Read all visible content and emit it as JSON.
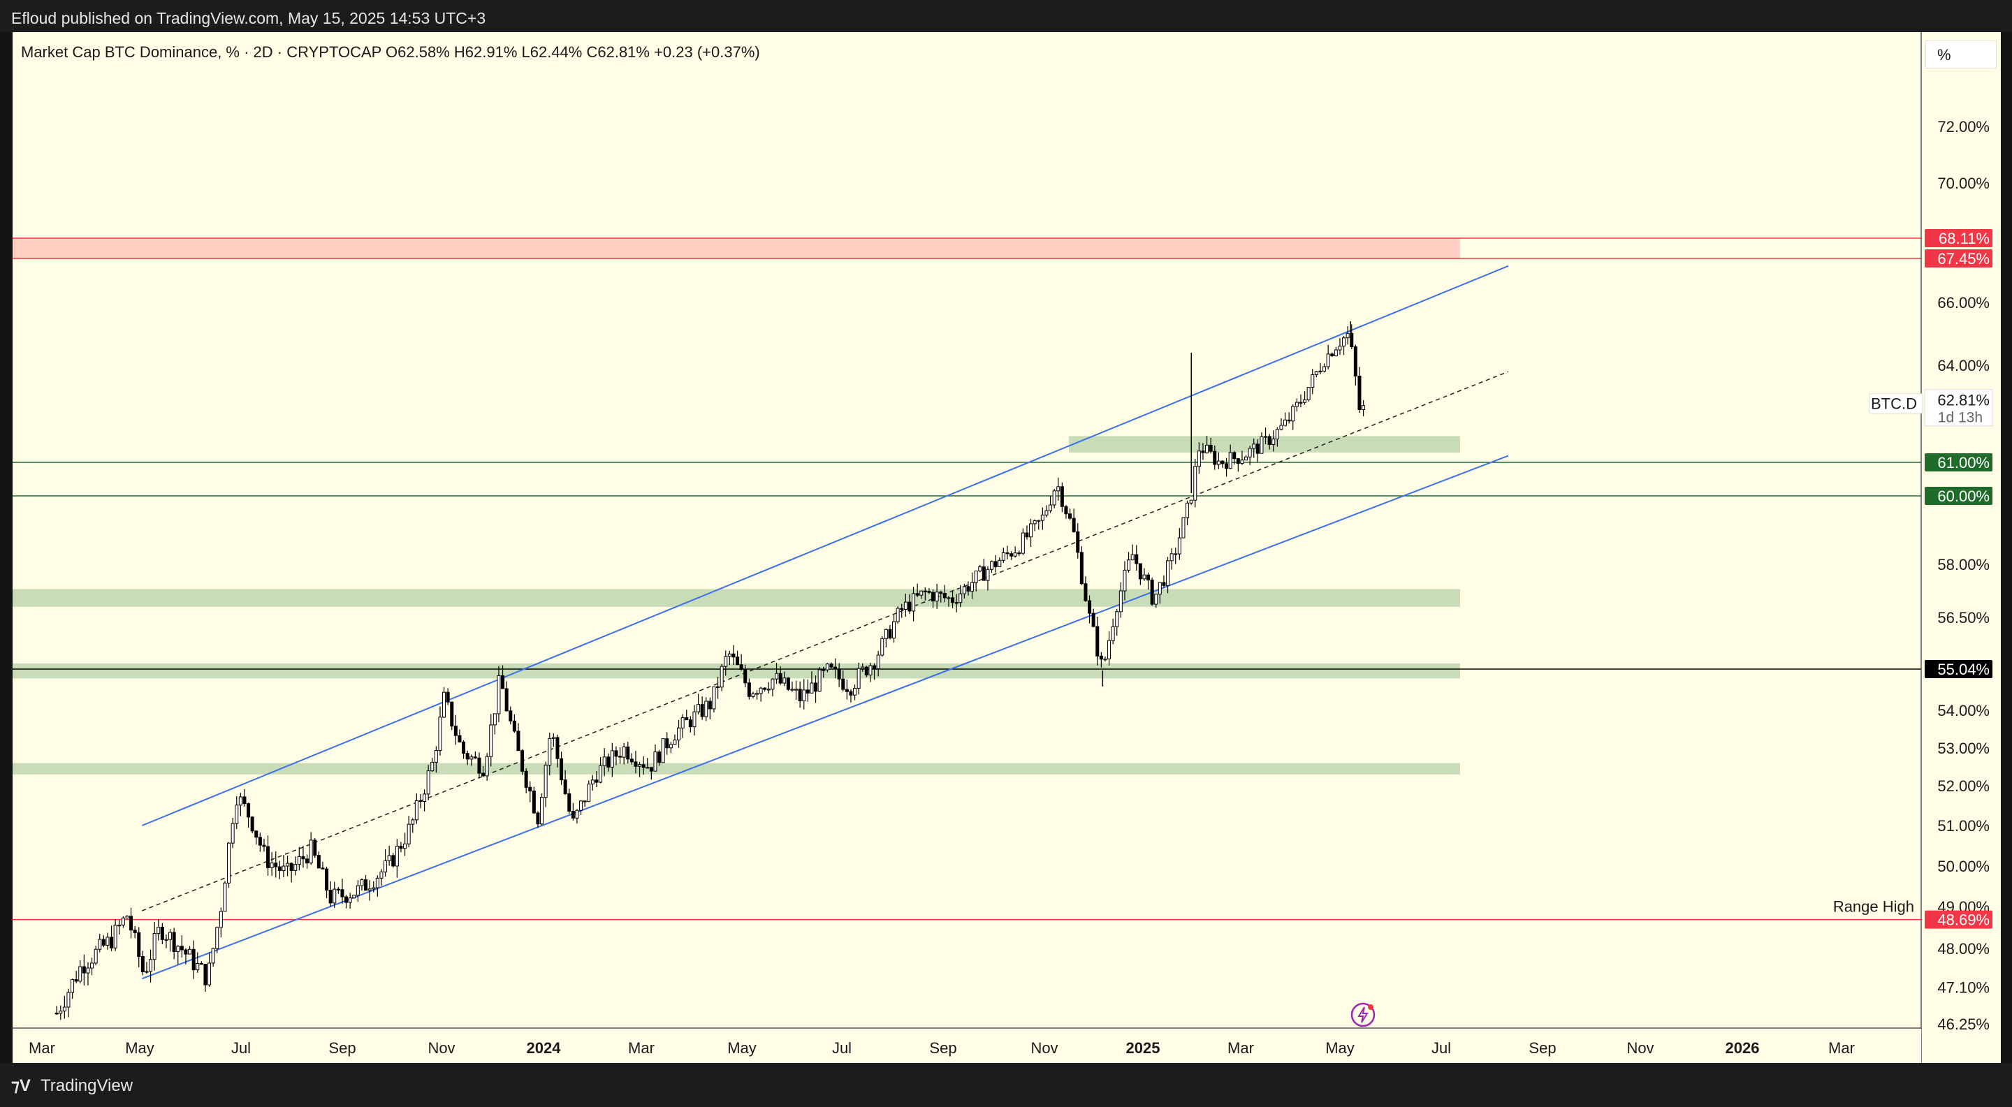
{
  "header": {
    "published_text": "Efloud published on TradingView.com, May 15, 2025 14:53 UTC+3"
  },
  "legend": {
    "info": "Market Cap BTC Dominance, % · 2D · CRYPTOCAP  O62.58%  H62.91%  L62.44%  C62.81%  +0.23 (+0.37%)"
  },
  "price_scale": {
    "unit_button": "%"
  },
  "footer": {
    "brand": "TradingView",
    "logo_icon": "tradingview-logo-icon"
  },
  "colors": {
    "background": "#fffde6",
    "candle": "#000000",
    "channel": "#3b6ff0",
    "resistance_zone": "#ffcfc4",
    "support_zone": "#c9dcb8",
    "red_label": "#f23645",
    "green_label": "#1f6b2a",
    "black_label": "#000000"
  },
  "chart_data": {
    "type": "candlestick",
    "symbol": "BTC.D",
    "title": "Market Cap BTC Dominance, % · 2D · CRYPTOCAP",
    "ohlc_last": {
      "open": 62.58,
      "high": 62.91,
      "low": 62.44,
      "close": 62.81,
      "change": 0.23,
      "change_pct": 0.37
    },
    "x_ticks": [
      "Mar",
      "May",
      "Jul",
      "Sep",
      "Nov",
      "2024",
      "Mar",
      "May",
      "Jul",
      "Sep",
      "Nov",
      "2025",
      "Mar",
      "May",
      "Jul",
      "Sep",
      "Nov",
      "2026",
      "Mar"
    ],
    "y_ticks": [
      "72.00%",
      "70.00%",
      "66.00%",
      "64.00%",
      "58.00%",
      "56.50%",
      "54.00%",
      "53.00%",
      "52.00%",
      "51.00%",
      "50.00%",
      "49.00%",
      "48.00%",
      "47.10%",
      "46.25%"
    ],
    "price_tag": {
      "symbol": "BTC.D",
      "value": "62.81%",
      "countdown": "1d 13h"
    },
    "horizontal_levels": [
      {
        "value": "68.11%",
        "color": "red"
      },
      {
        "value": "67.45%",
        "color": "red"
      },
      {
        "value": "61.00%",
        "color": "green"
      },
      {
        "value": "60.00%",
        "color": "green"
      },
      {
        "value": "55.04%",
        "color": "black"
      },
      {
        "value": "48.69%",
        "color": "red",
        "label": "Range High"
      }
    ],
    "zones": [
      {
        "kind": "resistance",
        "from": 67.45,
        "to": 68.11
      },
      {
        "kind": "support",
        "from": 61.3,
        "to": 61.8
      },
      {
        "kind": "support",
        "from": 56.8,
        "to": 57.3
      },
      {
        "kind": "support",
        "from": 54.8,
        "to": 55.2
      },
      {
        "kind": "support",
        "from": 52.3,
        "to": 52.6
      }
    ],
    "channel": {
      "upper": [
        {
          "date": "2023-05-01",
          "value": 51.0
        },
        {
          "date": "2025-08-10",
          "value": 67.2
        }
      ],
      "middle": [
        {
          "date": "2023-05-01",
          "value": 48.9
        },
        {
          "date": "2025-08-10",
          "value": 63.8
        }
      ],
      "lower": [
        {
          "date": "2023-05-01",
          "value": 47.3
        },
        {
          "date": "2025-08-10",
          "value": 61.2
        }
      ]
    },
    "close_path": [
      {
        "date": "2023-03-10",
        "value": 46.5
      },
      {
        "date": "2023-03-25",
        "value": 47.6
      },
      {
        "date": "2023-04-12",
        "value": 48.2
      },
      {
        "date": "2023-04-22",
        "value": 48.8
      },
      {
        "date": "2023-05-02",
        "value": 47.4
      },
      {
        "date": "2023-05-12",
        "value": 48.5
      },
      {
        "date": "2023-05-25",
        "value": 48.0
      },
      {
        "date": "2023-06-10",
        "value": 47.3
      },
      {
        "date": "2023-06-18",
        "value": 49.0
      },
      {
        "date": "2023-06-27",
        "value": 51.8
      },
      {
        "date": "2023-07-06",
        "value": 51.2
      },
      {
        "date": "2023-07-15",
        "value": 50.2
      },
      {
        "date": "2023-07-28",
        "value": 49.8
      },
      {
        "date": "2023-08-12",
        "value": 50.4
      },
      {
        "date": "2023-08-24",
        "value": 49.2
      },
      {
        "date": "2023-09-10",
        "value": 49.4
      },
      {
        "date": "2023-09-28",
        "value": 50.0
      },
      {
        "date": "2023-10-12",
        "value": 51.0
      },
      {
        "date": "2023-10-25",
        "value": 52.6
      },
      {
        "date": "2023-11-01",
        "value": 54.3
      },
      {
        "date": "2023-11-12",
        "value": 52.9
      },
      {
        "date": "2023-11-25",
        "value": 52.5
      },
      {
        "date": "2023-12-05",
        "value": 54.8
      },
      {
        "date": "2023-12-15",
        "value": 53.0
      },
      {
        "date": "2023-12-28",
        "value": 51.2
      },
      {
        "date": "2024-01-05",
        "value": 53.5
      },
      {
        "date": "2024-01-18",
        "value": 51.0
      },
      {
        "date": "2024-02-01",
        "value": 52.3
      },
      {
        "date": "2024-02-18",
        "value": 53.0
      },
      {
        "date": "2024-03-05",
        "value": 52.5
      },
      {
        "date": "2024-03-20",
        "value": 53.4
      },
      {
        "date": "2024-04-12",
        "value": 54.2
      },
      {
        "date": "2024-04-22",
        "value": 55.5
      },
      {
        "date": "2024-05-05",
        "value": 54.5
      },
      {
        "date": "2024-05-20",
        "value": 54.8
      },
      {
        "date": "2024-06-05",
        "value": 54.3
      },
      {
        "date": "2024-06-22",
        "value": 55.0
      },
      {
        "date": "2024-07-05",
        "value": 54.6
      },
      {
        "date": "2024-07-20",
        "value": 55.3
      },
      {
        "date": "2024-08-05",
        "value": 56.7
      },
      {
        "date": "2024-08-20",
        "value": 57.2
      },
      {
        "date": "2024-09-05",
        "value": 57.0
      },
      {
        "date": "2024-09-25",
        "value": 57.8
      },
      {
        "date": "2024-10-15",
        "value": 58.5
      },
      {
        "date": "2024-10-30",
        "value": 59.3
      },
      {
        "date": "2024-11-08",
        "value": 60.4
      },
      {
        "date": "2024-11-18",
        "value": 59.0
      },
      {
        "date": "2024-11-28",
        "value": 56.5
      },
      {
        "date": "2024-12-06",
        "value": 55.0
      },
      {
        "date": "2024-12-14",
        "value": 56.8
      },
      {
        "date": "2024-12-24",
        "value": 58.3
      },
      {
        "date": "2025-01-06",
        "value": 57.0
      },
      {
        "date": "2025-01-18",
        "value": 58.2
      },
      {
        "date": "2025-01-28",
        "value": 59.8
      },
      {
        "date": "2025-02-03",
        "value": 61.5
      },
      {
        "date": "2025-02-15",
        "value": 61.0
      },
      {
        "date": "2025-03-01",
        "value": 61.2
      },
      {
        "date": "2025-03-15",
        "value": 61.6
      },
      {
        "date": "2025-03-28",
        "value": 62.2
      },
      {
        "date": "2025-04-08",
        "value": 63.1
      },
      {
        "date": "2025-04-20",
        "value": 64.2
      },
      {
        "date": "2025-04-28",
        "value": 64.7
      },
      {
        "date": "2025-05-05",
        "value": 65.0
      },
      {
        "date": "2025-05-09",
        "value": 63.6
      },
      {
        "date": "2025-05-12",
        "value": 62.4
      },
      {
        "date": "2025-05-15",
        "value": 62.81
      }
    ],
    "notable_extremes": [
      {
        "date": "2025-01-29",
        "high": 64.4
      },
      {
        "date": "2025-05-06",
        "high": 65.4
      },
      {
        "date": "2024-12-06",
        "low": 54.6
      }
    ]
  }
}
